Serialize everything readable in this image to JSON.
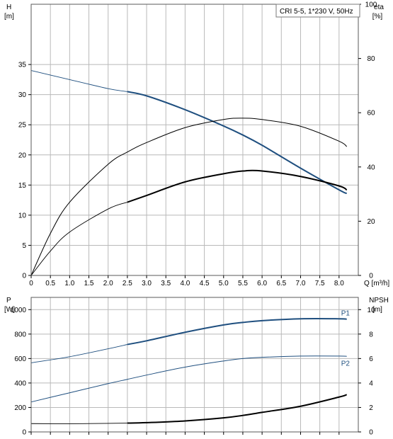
{
  "title_box": "CRI 5-5, 1*230 V, 50Hz",
  "colors": {
    "blue": "#1f4f7f",
    "black": "#000000",
    "grid": "#b9b9b9"
  },
  "chart_data": [
    {
      "type": "line",
      "id": "performance",
      "x_unit_label": "Q [m³/h]",
      "xlim": [
        0,
        8.5
      ],
      "xticks": [
        0,
        0.5,
        1,
        1.5,
        2,
        2.5,
        3,
        3.5,
        4,
        4.5,
        5,
        5.5,
        6,
        6.5,
        7,
        7.5,
        8
      ],
      "left_axis": {
        "label": "H",
        "unit": "[m]",
        "ylim": [
          0,
          45
        ],
        "ticks": [
          0,
          5,
          10,
          15,
          20,
          25,
          30,
          35
        ]
      },
      "right_axis": {
        "label": "eta",
        "unit": "[%]",
        "ylim": [
          0,
          100
        ],
        "ticks": [
          0,
          20,
          40,
          60,
          80,
          100
        ]
      },
      "grid": true,
      "series": [
        {
          "axis": "left",
          "color": "blue",
          "thin_to": 2.5,
          "thick_width": 2,
          "x": [
            0,
            1,
            2,
            2.5,
            3,
            4,
            5,
            5.5,
            6,
            7,
            8,
            8.2
          ],
          "y": [
            34,
            32.5,
            31,
            30.5,
            29.8,
            27.5,
            24.8,
            23.3,
            21.6,
            17.8,
            14.2,
            13.6
          ]
        },
        {
          "axis": "right",
          "color": "black",
          "thin_to": 0,
          "thick_width": 1,
          "x": [
            0,
            0.5,
            1,
            2,
            2.5,
            3,
            4,
            5,
            5.5,
            6,
            7,
            8,
            8.2
          ],
          "y": [
            0,
            15.5,
            27,
            41,
            45.5,
            49,
            54.5,
            57.5,
            58,
            57.5,
            55,
            49.5,
            47.5
          ]
        },
        {
          "axis": "right",
          "color": "black",
          "thin_to": 2.5,
          "thick_width": 2,
          "x": [
            0,
            0.5,
            1,
            2,
            2.5,
            3,
            4,
            5,
            5.5,
            6,
            7,
            8,
            8.2
          ],
          "y": [
            0,
            9,
            16,
            24.5,
            27,
            29.5,
            34.5,
            37.5,
            38.5,
            38.5,
            36.5,
            33,
            31.5
          ]
        }
      ]
    },
    {
      "type": "line",
      "id": "power-npsh",
      "left_axis": {
        "label": "P",
        "unit": "[W]",
        "ylim": [
          0,
          1100
        ],
        "ticks": [
          0,
          200,
          400,
          600,
          800,
          1000
        ]
      },
      "right_axis": {
        "label": "NPSH",
        "unit": "[m]",
        "ylim": [
          0,
          11
        ],
        "ticks": [
          0,
          2,
          4,
          6,
          8,
          10
        ]
      },
      "grid": true,
      "series": [
        {
          "name": "P1",
          "axis": "left",
          "color": "blue",
          "thin_to": 2.5,
          "thick_width": 2,
          "x": [
            0,
            1,
            2,
            2.5,
            3,
            4,
            5,
            5.5,
            6,
            7,
            8,
            8.2
          ],
          "y": [
            565,
            615,
            680,
            715,
            745,
            815,
            875,
            895,
            910,
            925,
            925,
            922
          ]
        },
        {
          "name": "P2",
          "axis": "left",
          "color": "blue",
          "thin_to": 0,
          "thick_width": 1,
          "x": [
            0,
            1,
            2,
            2.5,
            3,
            4,
            5,
            5.5,
            6,
            7,
            8,
            8.2
          ],
          "y": [
            245,
            320,
            395,
            430,
            465,
            530,
            580,
            600,
            610,
            620,
            620,
            618
          ]
        },
        {
          "name": "",
          "axis": "right",
          "color": "black",
          "thin_to": 2.5,
          "thick_width": 2,
          "x": [
            0,
            1,
            2,
            2.5,
            3,
            4,
            5,
            5.5,
            6,
            7,
            8,
            8.2
          ],
          "y": [
            0.68,
            0.67,
            0.7,
            0.72,
            0.76,
            0.9,
            1.15,
            1.35,
            1.6,
            2.1,
            2.85,
            3.05
          ]
        }
      ]
    }
  ]
}
